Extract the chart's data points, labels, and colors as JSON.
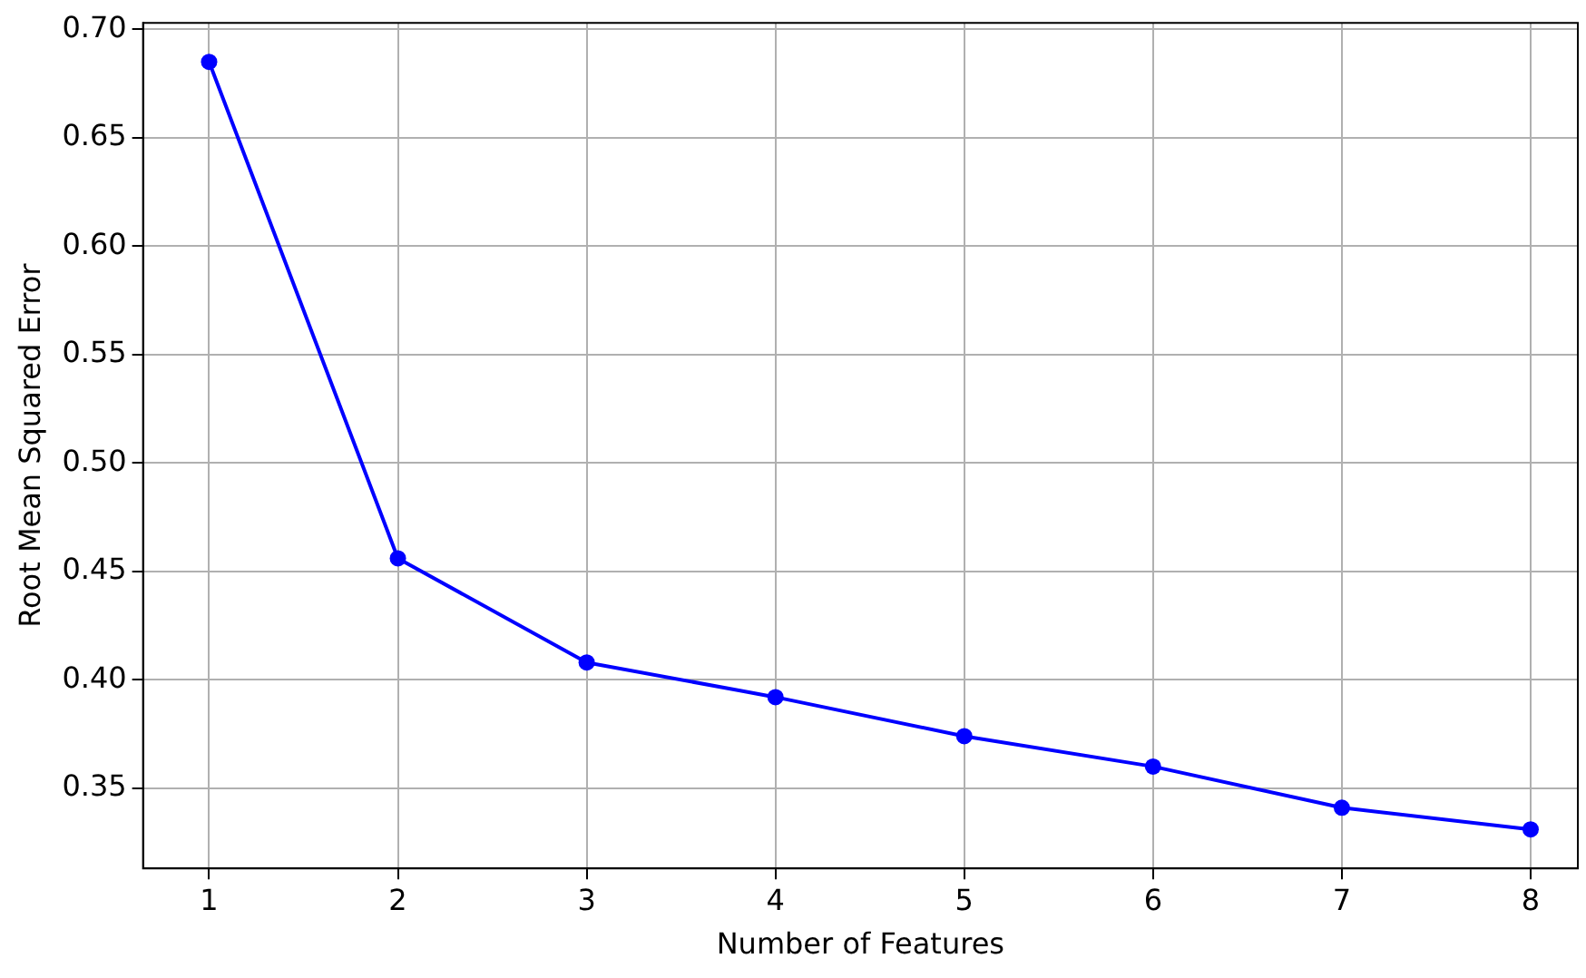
{
  "chart_data": {
    "type": "line",
    "xlabel": "Number of Features",
    "ylabel": "Root Mean Squared Error",
    "x": [
      1,
      2,
      3,
      4,
      5,
      6,
      7,
      8
    ],
    "series": [
      {
        "color": "#0000ff",
        "values": [
          0.685,
          0.456,
          0.408,
          0.392,
          0.374,
          0.36,
          0.341,
          0.331
        ]
      }
    ],
    "xlim": [
      0.65,
      8.25
    ],
    "xticks": [
      1,
      2,
      3,
      4,
      5,
      6,
      7,
      8
    ],
    "ylim": [
      0.313,
      0.703
    ],
    "yticks": [
      0.35,
      {
        "value": 0.4,
        "label": "0.40"
      },
      0.45,
      {
        "value": 0.5,
        "label": "0.50"
      },
      0.55,
      {
        "value": 0.6,
        "label": "0.60"
      },
      0.65,
      {
        "value": 0.7,
        "label": "0.70"
      }
    ],
    "grid": true,
    "legend": false,
    "marker": "circle",
    "line_style": "solid"
  }
}
